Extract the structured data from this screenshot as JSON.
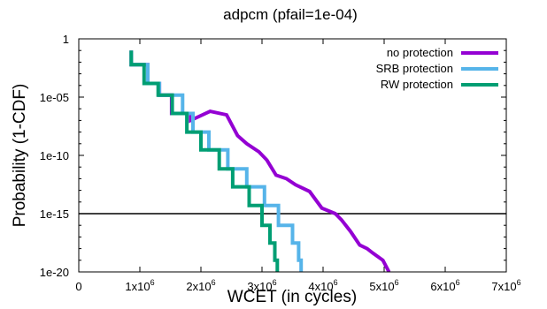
{
  "chart_data": {
    "type": "line",
    "title": "adpcm (pfail=1e-04)",
    "xlabel": "WCET (in cycles)",
    "ylabel": "Probability (1-CDF)",
    "x_scale": "linear",
    "y_scale": "log",
    "xlim": [
      0,
      7000000
    ],
    "ylim": [
      1e-20,
      1
    ],
    "x_ticks": [
      {
        "value": 0,
        "label": "0"
      },
      {
        "value": 1000000,
        "label": "1x10",
        "exp": "6"
      },
      {
        "value": 2000000,
        "label": "2x10",
        "exp": "6"
      },
      {
        "value": 3000000,
        "label": "3x10",
        "exp": "6"
      },
      {
        "value": 4000000,
        "label": "4x10",
        "exp": "6"
      },
      {
        "value": 5000000,
        "label": "5x10",
        "exp": "6"
      },
      {
        "value": 6000000,
        "label": "6x10",
        "exp": "6"
      },
      {
        "value": 7000000,
        "label": "7x10",
        "exp": "6"
      }
    ],
    "y_ticks": [
      {
        "value": 1,
        "label": "1"
      },
      {
        "value": 1e-05,
        "label": "1e-05"
      },
      {
        "value": 1e-10,
        "label": "1e-10"
      },
      {
        "value": 1e-15,
        "label": "1e-15"
      },
      {
        "value": 1e-20,
        "label": "1e-20"
      }
    ],
    "reference_line": {
      "y": 1e-15,
      "color": "#000000"
    },
    "legend_position": "top-right",
    "series": [
      {
        "name": "no protection",
        "color": "#9400D3",
        "points": [
          [
            860000,
            0.1
          ],
          [
            860000,
            0.006
          ],
          [
            1130000,
            0.006
          ],
          [
            1130000,
            0.00015
          ],
          [
            1320000,
            0.00015
          ],
          [
            1320000,
            1.5e-05
          ],
          [
            1520000,
            1.5e-05
          ],
          [
            1520000,
            4e-07
          ],
          [
            1830000,
            4e-07
          ],
          [
            1830000,
            1e-07
          ],
          [
            2150000,
            6e-07
          ],
          [
            2420000,
            3e-07
          ],
          [
            2600000,
            5e-09
          ],
          [
            2750000,
            1e-09
          ],
          [
            2950000,
            2e-10
          ],
          [
            3080000,
            4e-11
          ],
          [
            3230000,
            2e-12
          ],
          [
            3400000,
            1e-12
          ],
          [
            3550000,
            3e-13
          ],
          [
            3780000,
            8e-14
          ],
          [
            3980000,
            3e-15
          ],
          [
            4200000,
            1e-15
          ],
          [
            4300000,
            3e-16
          ],
          [
            4450000,
            3e-17
          ],
          [
            4600000,
            2e-18
          ],
          [
            4720000,
            1e-18
          ],
          [
            4820000,
            4e-19
          ],
          [
            4980000,
            1e-19
          ],
          [
            5080000,
            1e-20
          ]
        ]
      },
      {
        "name": "SRB protection",
        "color": "#56B4E9",
        "points": [
          [
            860000,
            0.1
          ],
          [
            860000,
            0.006
          ],
          [
            1130000,
            0.006
          ],
          [
            1130000,
            0.00015
          ],
          [
            1320000,
            0.00015
          ],
          [
            1320000,
            1.5e-05
          ],
          [
            1700000,
            1.5e-05
          ],
          [
            1700000,
            4e-07
          ],
          [
            1870000,
            4e-07
          ],
          [
            1870000,
            1e-08
          ],
          [
            2130000,
            1e-08
          ],
          [
            2130000,
            3e-10
          ],
          [
            2440000,
            3e-10
          ],
          [
            2440000,
            7e-12
          ],
          [
            2750000,
            7e-12
          ],
          [
            2750000,
            2e-13
          ],
          [
            3040000,
            2e-13
          ],
          [
            3040000,
            5e-15
          ],
          [
            3270000,
            5e-15
          ],
          [
            3270000,
            1e-16
          ],
          [
            3500000,
            1e-16
          ],
          [
            3500000,
            3e-18
          ],
          [
            3600000,
            3e-18
          ],
          [
            3600000,
            1e-19
          ],
          [
            3640000,
            1e-19
          ],
          [
            3640000,
            1e-20
          ]
        ]
      },
      {
        "name": "RW protection",
        "color": "#009E73",
        "points": [
          [
            860000,
            0.1
          ],
          [
            860000,
            0.006
          ],
          [
            1070000,
            0.006
          ],
          [
            1070000,
            0.00015
          ],
          [
            1300000,
            0.00015
          ],
          [
            1300000,
            1.5e-05
          ],
          [
            1530000,
            1.5e-05
          ],
          [
            1530000,
            4e-07
          ],
          [
            1770000,
            4e-07
          ],
          [
            1770000,
            1e-08
          ],
          [
            2000000,
            1e-08
          ],
          [
            2000000,
            3e-10
          ],
          [
            2300000,
            3e-10
          ],
          [
            2300000,
            7e-12
          ],
          [
            2520000,
            7e-12
          ],
          [
            2520000,
            2e-13
          ],
          [
            2790000,
            2e-13
          ],
          [
            2790000,
            5e-15
          ],
          [
            3000000,
            5e-15
          ],
          [
            3000000,
            1e-16
          ],
          [
            3130000,
            1e-16
          ],
          [
            3130000,
            3e-18
          ],
          [
            3210000,
            3e-18
          ],
          [
            3210000,
            1e-19
          ],
          [
            3250000,
            1e-19
          ],
          [
            3250000,
            1e-20
          ]
        ]
      }
    ]
  }
}
